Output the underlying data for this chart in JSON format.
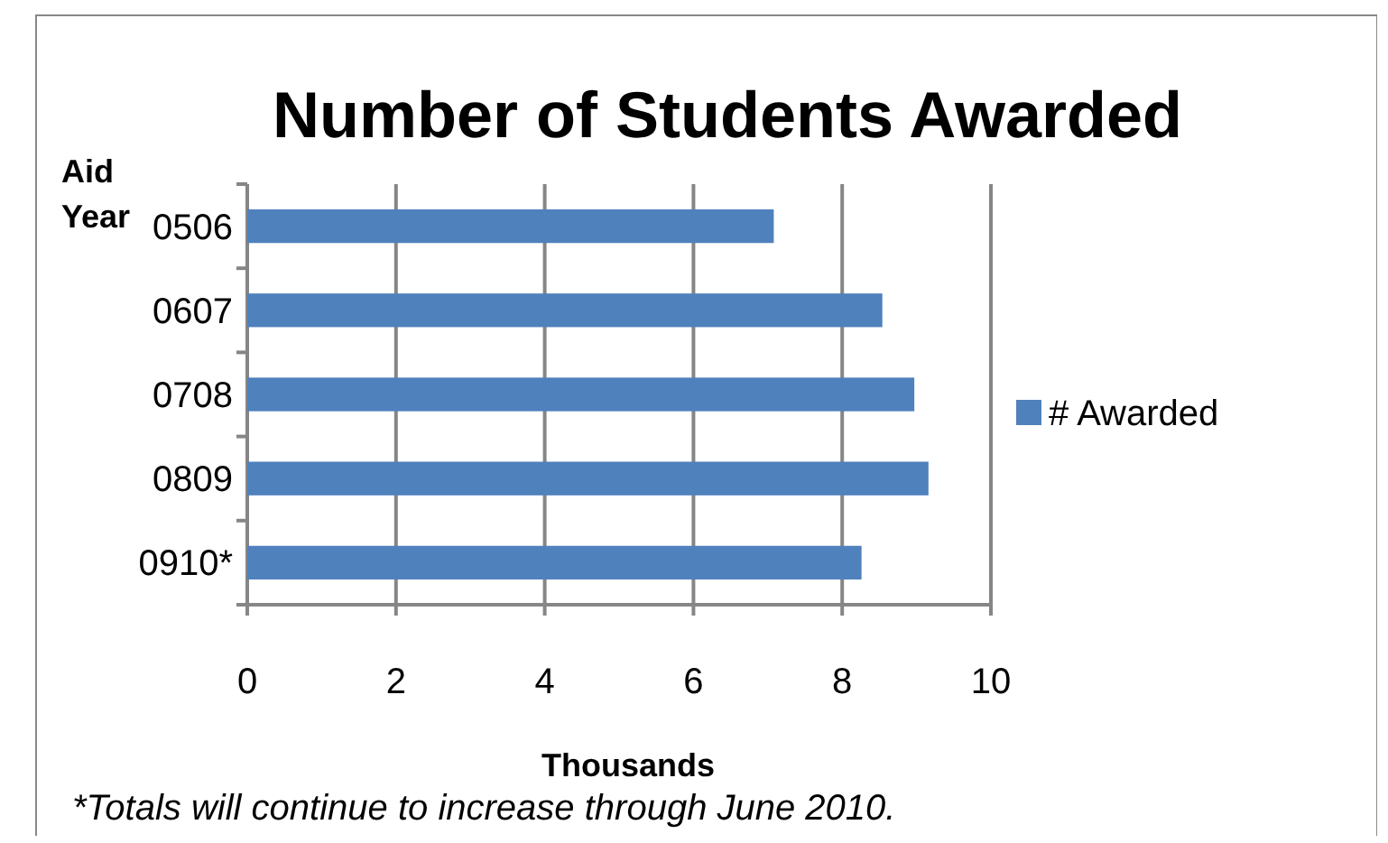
{
  "chart_data": {
    "type": "bar",
    "orientation": "horizontal",
    "title": "Number of Students Awarded",
    "ylabel": "Aid Year",
    "xlabel": "Thousands",
    "categories": [
      "0506",
      "0607",
      "0708",
      "0809",
      "0910*"
    ],
    "series": [
      {
        "name": "# Awarded",
        "color": "#4f81bd",
        "values": [
          7.08,
          8.54,
          8.97,
          9.16,
          8.26
        ]
      }
    ],
    "xlim": [
      0,
      10
    ],
    "xticks": [
      0,
      2,
      4,
      6,
      8,
      10
    ],
    "grid": "x",
    "legend": "right",
    "annotations": [
      "*Totals will continue to increase through June 2010."
    ]
  }
}
